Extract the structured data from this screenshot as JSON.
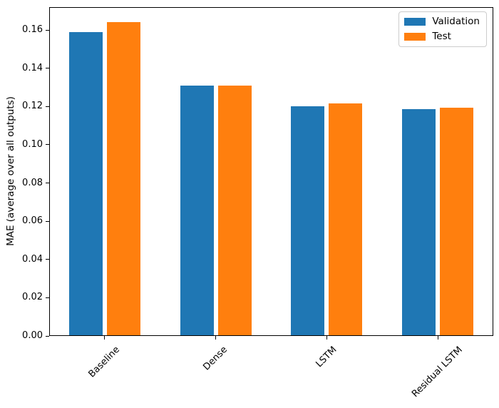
{
  "figure": {
    "background": "#ffffff",
    "spine_color": "#000000",
    "text_color": "#000000"
  },
  "chart_data": {
    "type": "bar",
    "title": "",
    "xlabel": "",
    "ylabel": "MAE (average over all outputs)",
    "categories": [
      "Baseline",
      "Dense",
      "LSTM",
      "Residual LSTM"
    ],
    "series": [
      {
        "name": "Validation",
        "color": "#1f77b4",
        "values": [
          0.159,
          0.131,
          0.1202,
          0.1186
        ]
      },
      {
        "name": "Test",
        "color": "#ff7f0e",
        "values": [
          0.164,
          0.131,
          0.1216,
          0.1195
        ]
      }
    ],
    "ylim": [
      0,
      0.172
    ],
    "y_ticks": [
      0.0,
      0.02,
      0.04,
      0.06,
      0.08,
      0.1,
      0.12,
      0.14,
      0.16
    ],
    "y_tick_labels": [
      "0.00",
      "0.02",
      "0.04",
      "0.06",
      "0.08",
      "0.10",
      "0.12",
      "0.14",
      "0.16"
    ],
    "x_tick_rotation": 45,
    "grid": false,
    "legend": {
      "position": "upper right",
      "entries": [
        "Validation",
        "Test"
      ]
    }
  }
}
